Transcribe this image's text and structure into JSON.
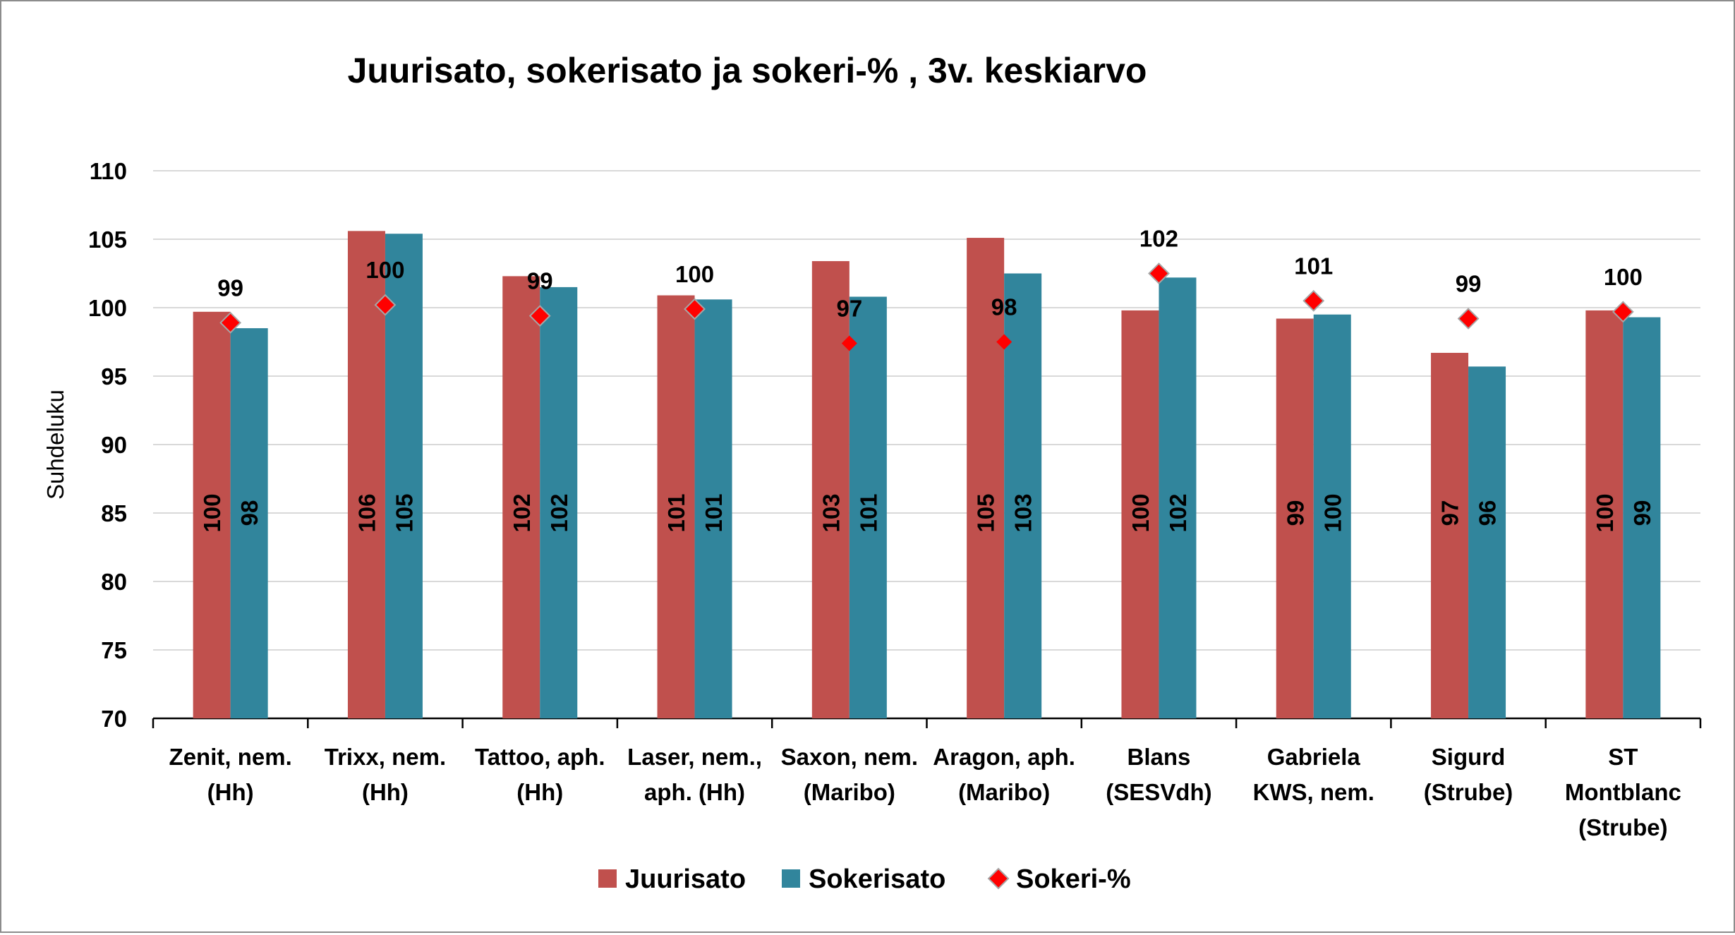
{
  "chart_data": {
    "type": "bar",
    "title": "Juurisato, sokerisato ja sokeri-% , 3v. keskiarvo",
    "ylabel": "Suhdeluku",
    "xlabel": "",
    "ylim": [
      70,
      110
    ],
    "yticks": [
      70,
      75,
      80,
      85,
      90,
      95,
      100,
      105,
      110
    ],
    "grid": true,
    "legend": "bottom",
    "categories": [
      [
        "Zenit, nem.",
        "(Hh)"
      ],
      [
        "Trixx, nem.",
        "(Hh)"
      ],
      [
        "Tattoo, aph.",
        "(Hh)"
      ],
      [
        "Laser, nem.,",
        "aph. (Hh)"
      ],
      [
        "Saxon, nem.",
        "(Maribo)"
      ],
      [
        "Aragon, aph.",
        "(Maribo)"
      ],
      [
        "Blans",
        "(SESVdh)"
      ],
      [
        "Gabriela",
        "KWS, nem."
      ],
      [
        "Sigurd",
        "(Strube)"
      ],
      [
        "ST",
        "Montblanc",
        "(Strube)"
      ]
    ],
    "series": [
      {
        "name": "Juurisato",
        "kind": "bar",
        "color": "#c0504d",
        "values": [
          99.7,
          105.6,
          102.3,
          100.9,
          103.4,
          105.1,
          99.8,
          99.2,
          96.7,
          99.8
        ],
        "labels": [
          "100",
          "106",
          "102",
          "101",
          "103",
          "105",
          "100",
          "99",
          "97",
          "100"
        ]
      },
      {
        "name": "Sokerisato",
        "kind": "bar",
        "color": "#31859c",
        "values": [
          98.5,
          105.4,
          101.5,
          100.6,
          100.8,
          102.5,
          102.2,
          99.5,
          95.7,
          99.3
        ],
        "labels": [
          "98",
          "105",
          "102",
          "101",
          "101",
          "103",
          "102",
          "100",
          "96",
          "99"
        ]
      },
      {
        "name": "Sokeri-%",
        "kind": "marker",
        "color": "#ff0000",
        "values": [
          98.9,
          100.2,
          99.4,
          99.9,
          97.4,
          97.5,
          102.5,
          100.5,
          99.2,
          99.7
        ],
        "labels": [
          "99",
          "100",
          "99",
          "100",
          "97",
          "98",
          "102",
          "101",
          "99",
          "100"
        ]
      }
    ]
  }
}
